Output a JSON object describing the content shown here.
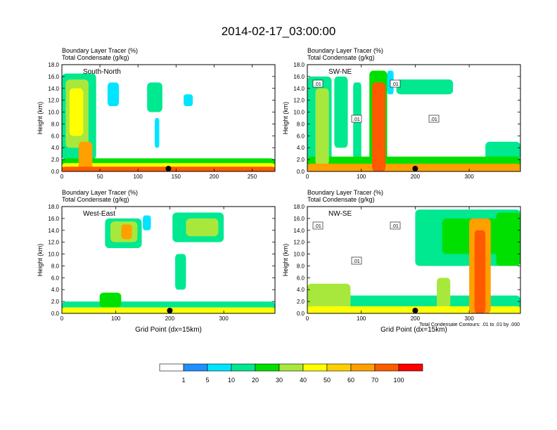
{
  "title": "2014-02-17_03:00:00",
  "panel_titles": {
    "line1": "Boundary Layer Tracer    (%)",
    "line2": "Total Condensate    (g/kg)"
  },
  "contour_note": "Total Condensate Contours: .01 to .01 by .000",
  "colors": {
    "levels": [
      "#ffffff",
      "#1e90ff",
      "#00e5ff",
      "#00e890",
      "#00e000",
      "#a8e83c",
      "#ffff00",
      "#ffd000",
      "#ffa000",
      "#ff5a00",
      "#ff0000"
    ],
    "contour": "#000000",
    "marker": "#000000"
  },
  "chart_data": [
    {
      "type": "heatmap",
      "panel_label": "South-North",
      "ylabel": "Height (km)",
      "xlabel": "",
      "xlim": [
        0,
        280
      ],
      "ylim": [
        0,
        18
      ],
      "xticks": [
        "0",
        "50",
        "100",
        "150",
        "200",
        "250"
      ],
      "yticks": [
        "0.0",
        "2.0",
        "4.0",
        "6.0",
        "8.0",
        "10.0",
        "12.0",
        "14.0",
        "16.0",
        "18.0"
      ],
      "marker_x": 140,
      "shaded_fields": [
        {
          "x": [
            0,
            280
          ],
          "y": [
            0,
            2.2
          ],
          "level": 20
        },
        {
          "x": [
            0,
            280
          ],
          "y": [
            0,
            1.4
          ],
          "level": 40
        },
        {
          "x": [
            0,
            280
          ],
          "y": [
            0,
            0.8
          ],
          "level": 70
        },
        {
          "x": [
            0,
            45
          ],
          "y": [
            2,
            16.5
          ],
          "level": 10
        },
        {
          "x": [
            5,
            35
          ],
          "y": [
            4,
            15.5
          ],
          "level": 30
        },
        {
          "x": [
            10,
            28
          ],
          "y": [
            6,
            14
          ],
          "level": 40
        },
        {
          "x": [
            22,
            40
          ],
          "y": [
            0,
            5
          ],
          "level": 60
        },
        {
          "x": [
            60,
            75
          ],
          "y": [
            11,
            15
          ],
          "level": 5
        },
        {
          "x": [
            112,
            132
          ],
          "y": [
            10,
            15
          ],
          "level": 10
        },
        {
          "x": [
            122,
            128
          ],
          "y": [
            4,
            9
          ],
          "level": 5
        },
        {
          "x": [
            160,
            172
          ],
          "y": [
            11,
            13
          ],
          "level": 5
        }
      ]
    },
    {
      "type": "heatmap",
      "panel_label": "SW-NE",
      "ylabel": "Height (km)",
      "xlabel": "",
      "xlim": [
        0,
        395
      ],
      "ylim": [
        0,
        18
      ],
      "xticks": [
        "0",
        "100",
        "200",
        "300"
      ],
      "yticks": [
        "0.0",
        "2.0",
        "4.0",
        "6.0",
        "8.0",
        "10.0",
        "12.0",
        "14.0",
        "16.0",
        "18.0"
      ],
      "marker_x": 200,
      "contour_labels": [
        ".01",
        ".01",
        ".01",
        ".01"
      ],
      "shaded_fields": [
        {
          "x": [
            0,
            395
          ],
          "y": [
            0,
            2.5
          ],
          "level": 20
        },
        {
          "x": [
            0,
            395
          ],
          "y": [
            0,
            1.3
          ],
          "level": 60
        },
        {
          "x": [
            0,
            45
          ],
          "y": [
            0,
            16
          ],
          "level": 10
        },
        {
          "x": [
            15,
            40
          ],
          "y": [
            1,
            14
          ],
          "level": 30
        },
        {
          "x": [
            50,
            75
          ],
          "y": [
            4,
            16
          ],
          "level": 10
        },
        {
          "x": [
            85,
            100
          ],
          "y": [
            2,
            15
          ],
          "level": 10
        },
        {
          "x": [
            115,
            148
          ],
          "y": [
            0,
            17
          ],
          "level": 20
        },
        {
          "x": [
            120,
            145
          ],
          "y": [
            0,
            15
          ],
          "level": 70
        },
        {
          "x": [
            148,
            160
          ],
          "y": [
            13,
            17
          ],
          "level": 5
        },
        {
          "x": [
            165,
            270
          ],
          "y": [
            13,
            15.5
          ],
          "level": 10
        },
        {
          "x": [
            330,
            395
          ],
          "y": [
            2,
            5
          ],
          "level": 10
        }
      ]
    },
    {
      "type": "heatmap",
      "panel_label": "West-East",
      "ylabel": "Height (km)",
      "xlabel": "Grid Point (dx=15km)",
      "xlim": [
        0,
        395
      ],
      "ylim": [
        0,
        18
      ],
      "xticks": [
        "0",
        "100",
        "200",
        "300"
      ],
      "yticks": [
        "0.0",
        "2.0",
        "4.0",
        "6.0",
        "8.0",
        "10.0",
        "12.0",
        "14.0",
        "16.0",
        "18.0"
      ],
      "marker_x": 200,
      "shaded_fields": [
        {
          "x": [
            0,
            395
          ],
          "y": [
            0,
            2.0
          ],
          "level": 10
        },
        {
          "x": [
            0,
            395
          ],
          "y": [
            0,
            1.0
          ],
          "level": 40
        },
        {
          "x": [
            80,
            148
          ],
          "y": [
            11,
            16
          ],
          "level": 10
        },
        {
          "x": [
            90,
            140
          ],
          "y": [
            12,
            15.5
          ],
          "level": 30
        },
        {
          "x": [
            110,
            130
          ],
          "y": [
            12.5,
            15
          ],
          "level": 60
        },
        {
          "x": [
            150,
            165
          ],
          "y": [
            14,
            16.5
          ],
          "level": 5
        },
        {
          "x": [
            205,
            300
          ],
          "y": [
            12,
            17
          ],
          "level": 10
        },
        {
          "x": [
            230,
            290
          ],
          "y": [
            13,
            16
          ],
          "level": 30
        },
        {
          "x": [
            210,
            230
          ],
          "y": [
            4,
            10
          ],
          "level": 10
        },
        {
          "x": [
            70,
            110
          ],
          "y": [
            1,
            3.5
          ],
          "level": 20
        }
      ]
    },
    {
      "type": "heatmap",
      "panel_label": "NW-SE",
      "ylabel": "Height (km)",
      "xlabel": "Grid Point (dx=15km)",
      "xlim": [
        0,
        395
      ],
      "ylim": [
        0,
        18
      ],
      "xticks": [
        "0",
        "100",
        "200",
        "300"
      ],
      "yticks": [
        "0.0",
        "2.0",
        "4.0",
        "6.0",
        "8.0",
        "10.0",
        "12.0",
        "14.0",
        "16.0",
        "18.0"
      ],
      "marker_x": 200,
      "contour_labels": [
        ".01",
        ".01",
        ".01"
      ],
      "shaded_fields": [
        {
          "x": [
            0,
            395
          ],
          "y": [
            0,
            3.0
          ],
          "level": 10
        },
        {
          "x": [
            0,
            395
          ],
          "y": [
            0,
            1.2
          ],
          "level": 40
        },
        {
          "x": [
            200,
            395
          ],
          "y": [
            8,
            17.5
          ],
          "level": 10
        },
        {
          "x": [
            250,
            395
          ],
          "y": [
            10,
            16
          ],
          "level": 20
        },
        {
          "x": [
            300,
            340
          ],
          "y": [
            0,
            16
          ],
          "level": 60
        },
        {
          "x": [
            310,
            330
          ],
          "y": [
            0,
            14
          ],
          "level": 70
        },
        {
          "x": [
            0,
            80
          ],
          "y": [
            0,
            5
          ],
          "level": 30
        },
        {
          "x": [
            240,
            265
          ],
          "y": [
            0,
            6
          ],
          "level": 30
        },
        {
          "x": [
            350,
            395
          ],
          "y": [
            8,
            17
          ],
          "level": 20
        }
      ]
    }
  ],
  "legend": {
    "labels": [
      "1",
      "5",
      "10",
      "20",
      "30",
      "40",
      "50",
      "60",
      "70",
      "100"
    ]
  }
}
